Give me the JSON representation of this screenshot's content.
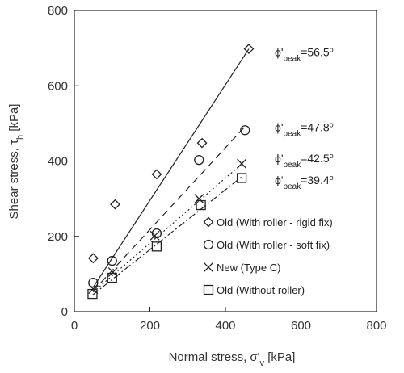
{
  "chart_data": {
    "type": "scatter",
    "xlabel_main": "Normal stress, σ'",
    "xlabel_sub": "v",
    "xlabel_unit": " [kPa]",
    "ylabel_main": "Shear stress, τ",
    "ylabel_sub": "h",
    "ylabel_unit": " [kPa]",
    "xlim": [
      0,
      800
    ],
    "ylim": [
      0,
      800
    ],
    "xticks": [
      "0",
      "200",
      "400",
      "600",
      "800"
    ],
    "yticks": [
      "0",
      "200",
      "400",
      "600",
      "800"
    ],
    "grid": false,
    "legend_placement": "lower-right",
    "series": [
      {
        "name": "Old (With roller - rigid fix)",
        "marker": "diamond",
        "line_style": "solid",
        "points": [
          [
            50,
            142
          ],
          [
            108,
            285
          ],
          [
            218,
            365
          ],
          [
            338,
            448
          ],
          [
            462,
            698
          ]
        ],
        "fit_line": [
          [
            50,
            65
          ],
          [
            462,
            698
          ]
        ],
        "annotation": {
          "phi": "ϕ'",
          "sub": "peak",
          "value": "=56.5",
          "deg": "o",
          "y_at": 690
        }
      },
      {
        "name": "Old (With roller - soft fix)",
        "marker": "circle",
        "line_style": "dashed",
        "points": [
          [
            50,
            77
          ],
          [
            100,
            135
          ],
          [
            218,
            208
          ],
          [
            330,
            403
          ],
          [
            452,
            482
          ]
        ],
        "fit_line": [
          [
            50,
            55
          ],
          [
            452,
            492
          ]
        ],
        "annotation": {
          "phi": "ϕ'",
          "sub": "peak",
          "value": "=47.8",
          "deg": "o",
          "y_at": 490
        }
      },
      {
        "name": "New (Type C)",
        "marker": "x",
        "line_style": "dotted",
        "points": [
          [
            50,
            60
          ],
          [
            102,
            105
          ],
          [
            213,
            202
          ],
          [
            330,
            300
          ],
          [
            443,
            393
          ]
        ],
        "fit_line": [
          [
            50,
            52
          ],
          [
            443,
            392
          ]
        ],
        "annotation": {
          "phi": "ϕ'",
          "sub": "peak",
          "value": "=42.5",
          "deg": "o",
          "y_at": 408
        }
      },
      {
        "name": "Old (Without roller)",
        "marker": "square",
        "line_style": "dashdot",
        "points": [
          [
            48,
            47
          ],
          [
            100,
            90
          ],
          [
            218,
            173
          ],
          [
            335,
            283
          ],
          [
            443,
            355
          ]
        ],
        "fit_line": [
          [
            48,
            44
          ],
          [
            443,
            358
          ]
        ],
        "annotation": {
          "phi": "ϕ'",
          "sub": "peak",
          "value": "=39.4",
          "deg": "o",
          "y_at": 350
        }
      }
    ]
  }
}
